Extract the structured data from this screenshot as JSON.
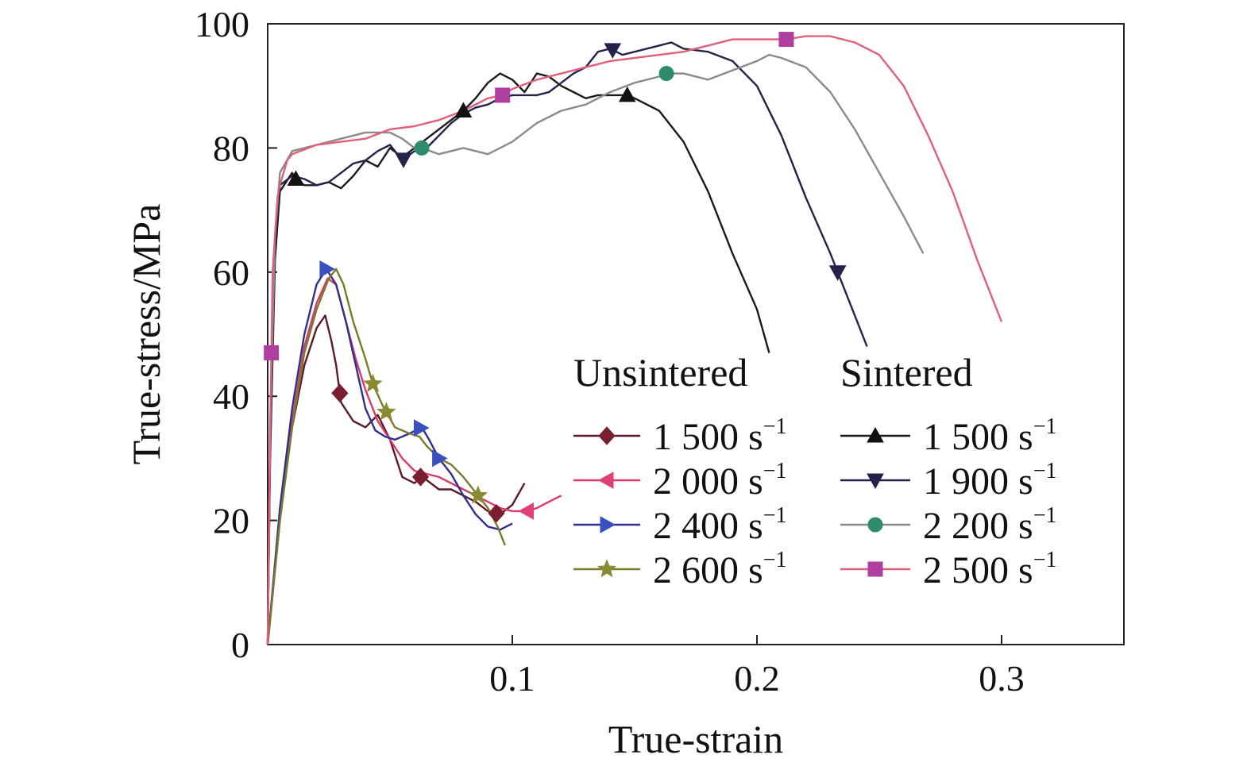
{
  "chart_data": {
    "type": "line",
    "title": "",
    "xlabel": "True-strain",
    "ylabel": "True-stress/MPa",
    "xlim": [
      0,
      0.35
    ],
    "ylim": [
      0,
      100
    ],
    "x_ticks": [
      0.1,
      0.2,
      0.3
    ],
    "x_tick_labels": [
      "0.1",
      "0.2",
      "0.3"
    ],
    "y_ticks": [
      0,
      20,
      40,
      60,
      80,
      100
    ],
    "y_tick_labels": [
      "0",
      "20",
      "40",
      "60",
      "80",
      "100"
    ],
    "grid": false,
    "legend_groups": [
      {
        "title": "Unsintered",
        "position": "center-right"
      },
      {
        "title": "Sintered",
        "position": "right"
      }
    ],
    "series": [
      {
        "group": "Unsintered",
        "name": "1 500 s",
        "exponent": "−1",
        "color": "#5a1a28",
        "marker": "diamond",
        "marker_color": "#7a1f30",
        "points": [
          [
            0,
            0
          ],
          [
            0.005,
            20
          ],
          [
            0.01,
            35
          ],
          [
            0.015,
            45
          ],
          [
            0.02,
            51
          ],
          [
            0.0235,
            53
          ],
          [
            0.026,
            49
          ],
          [
            0.028,
            45
          ],
          [
            0.03,
            39
          ],
          [
            0.035,
            36
          ],
          [
            0.04,
            35
          ],
          [
            0.045,
            37
          ],
          [
            0.05,
            33
          ],
          [
            0.055,
            27
          ],
          [
            0.06,
            26
          ],
          [
            0.0625,
            27
          ],
          [
            0.065,
            26.5
          ],
          [
            0.07,
            25
          ],
          [
            0.075,
            25
          ],
          [
            0.08,
            24
          ],
          [
            0.085,
            23
          ],
          [
            0.09,
            21.5
          ],
          [
            0.095,
            21
          ],
          [
            0.1,
            22.5
          ],
          [
            0.105,
            26
          ]
        ],
        "markers_x": [
          0.0295,
          0.0625,
          0.0935
        ]
      },
      {
        "group": "Unsintered",
        "name": "2 000 s",
        "exponent": "−1",
        "color": "#d83a6a",
        "marker": "triangle-left",
        "marker_color": "#e0407a",
        "points": [
          [
            0,
            0
          ],
          [
            0.005,
            20
          ],
          [
            0.01,
            36
          ],
          [
            0.015,
            48
          ],
          [
            0.02,
            55
          ],
          [
            0.0245,
            59
          ],
          [
            0.028,
            58
          ],
          [
            0.032,
            52
          ],
          [
            0.036,
            46
          ],
          [
            0.04,
            41
          ],
          [
            0.045,
            36
          ],
          [
            0.05,
            33
          ],
          [
            0.055,
            30
          ],
          [
            0.06,
            28
          ],
          [
            0.07,
            27
          ],
          [
            0.08,
            25
          ],
          [
            0.09,
            23
          ],
          [
            0.095,
            22
          ],
          [
            0.1,
            21.5
          ],
          [
            0.106,
            21.5
          ],
          [
            0.11,
            22
          ],
          [
            0.115,
            23
          ],
          [
            0.12,
            24
          ]
        ],
        "markers_x": [
          0.106
        ]
      },
      {
        "group": "Unsintered",
        "name": "2 400 s",
        "exponent": "−1",
        "color": "#2f2f8f",
        "marker": "triangle-right",
        "marker_color": "#3a50c0",
        "points": [
          [
            0,
            0
          ],
          [
            0.005,
            22
          ],
          [
            0.01,
            38
          ],
          [
            0.015,
            50
          ],
          [
            0.02,
            58
          ],
          [
            0.024,
            60.5
          ],
          [
            0.028,
            58
          ],
          [
            0.032,
            52
          ],
          [
            0.036,
            45
          ],
          [
            0.04,
            38
          ],
          [
            0.044,
            34.5
          ],
          [
            0.048,
            33.5
          ],
          [
            0.052,
            33
          ],
          [
            0.058,
            34
          ],
          [
            0.063,
            35
          ],
          [
            0.066,
            33
          ],
          [
            0.07,
            30
          ],
          [
            0.075,
            27.5
          ],
          [
            0.08,
            24
          ],
          [
            0.085,
            21
          ],
          [
            0.09,
            19
          ],
          [
            0.095,
            18.5
          ],
          [
            0.1,
            19.5
          ]
        ],
        "markers_x": [
          0.024,
          0.0625,
          0.07
        ]
      },
      {
        "group": "Unsintered",
        "name": "2 600 s",
        "exponent": "−1",
        "color": "#7a7a2a",
        "marker": "star",
        "marker_color": "#8a8a30",
        "points": [
          [
            0,
            0
          ],
          [
            0.005,
            20
          ],
          [
            0.01,
            35
          ],
          [
            0.015,
            47
          ],
          [
            0.02,
            54
          ],
          [
            0.025,
            59
          ],
          [
            0.028,
            60.5
          ],
          [
            0.031,
            58
          ],
          [
            0.035,
            52
          ],
          [
            0.04,
            46
          ],
          [
            0.043,
            42
          ],
          [
            0.047,
            38.5
          ],
          [
            0.052,
            35
          ],
          [
            0.058,
            34
          ],
          [
            0.062,
            33.5
          ],
          [
            0.065,
            32
          ],
          [
            0.07,
            30
          ],
          [
            0.075,
            29
          ],
          [
            0.08,
            27
          ],
          [
            0.085,
            24.5
          ],
          [
            0.09,
            22
          ],
          [
            0.094,
            19
          ],
          [
            0.097,
            16
          ]
        ],
        "markers_x": [
          0.043,
          0.0485,
          0.086
        ]
      },
      {
        "group": "Sintered",
        "name": "1 500 s",
        "exponent": "−1",
        "color": "#1a1a1a",
        "marker": "triangle-up",
        "marker_color": "#111111",
        "points": [
          [
            0,
            0
          ],
          [
            0.001,
            30
          ],
          [
            0.003,
            62
          ],
          [
            0.005,
            73
          ],
          [
            0.01,
            76
          ],
          [
            0.0115,
            75
          ],
          [
            0.015,
            74
          ],
          [
            0.02,
            74
          ],
          [
            0.025,
            74.5
          ],
          [
            0.03,
            73.5
          ],
          [
            0.035,
            75.5
          ],
          [
            0.04,
            78
          ],
          [
            0.045,
            77
          ],
          [
            0.05,
            80
          ],
          [
            0.055,
            78.5
          ],
          [
            0.06,
            80
          ],
          [
            0.065,
            81.5
          ],
          [
            0.07,
            83
          ],
          [
            0.075,
            84.5
          ],
          [
            0.08,
            86
          ],
          [
            0.085,
            88
          ],
          [
            0.09,
            90.5
          ],
          [
            0.095,
            92
          ],
          [
            0.1,
            91
          ],
          [
            0.105,
            89
          ],
          [
            0.11,
            92
          ],
          [
            0.115,
            91.5
          ],
          [
            0.12,
            90
          ],
          [
            0.125,
            89
          ],
          [
            0.13,
            88
          ],
          [
            0.135,
            88.5
          ],
          [
            0.14,
            88.5
          ],
          [
            0.147,
            88.5
          ],
          [
            0.15,
            88
          ],
          [
            0.16,
            86
          ],
          [
            0.17,
            81
          ],
          [
            0.18,
            73
          ],
          [
            0.19,
            63
          ],
          [
            0.2,
            54
          ],
          [
            0.205,
            47
          ]
        ],
        "markers_x": [
          0.0115,
          0.08,
          0.147
        ]
      },
      {
        "group": "Sintered",
        "name": "1 900 s",
        "exponent": "−1",
        "color": "#22224a",
        "marker": "triangle-down",
        "marker_color": "#22224a",
        "points": [
          [
            0,
            0
          ],
          [
            0.001,
            32
          ],
          [
            0.003,
            64
          ],
          [
            0.005,
            74
          ],
          [
            0.01,
            75.5
          ],
          [
            0.015,
            75
          ],
          [
            0.02,
            74
          ],
          [
            0.025,
            74.5
          ],
          [
            0.03,
            76
          ],
          [
            0.035,
            77.5
          ],
          [
            0.04,
            78
          ],
          [
            0.045,
            79.5
          ],
          [
            0.05,
            80.5
          ],
          [
            0.055,
            78
          ],
          [
            0.06,
            79.5
          ],
          [
            0.065,
            80
          ],
          [
            0.07,
            82
          ],
          [
            0.075,
            84
          ],
          [
            0.08,
            85.5
          ],
          [
            0.085,
            86.5
          ],
          [
            0.09,
            87
          ],
          [
            0.095,
            88
          ],
          [
            0.1,
            88.5
          ],
          [
            0.11,
            88.5
          ],
          [
            0.115,
            89
          ],
          [
            0.12,
            90.5
          ],
          [
            0.125,
            92
          ],
          [
            0.13,
            93
          ],
          [
            0.135,
            95.5
          ],
          [
            0.14,
            96
          ],
          [
            0.145,
            95
          ],
          [
            0.15,
            95.5
          ],
          [
            0.16,
            96.5
          ],
          [
            0.165,
            97
          ],
          [
            0.17,
            96
          ],
          [
            0.18,
            95.5
          ],
          [
            0.19,
            94
          ],
          [
            0.2,
            90
          ],
          [
            0.21,
            82
          ],
          [
            0.22,
            72
          ],
          [
            0.23,
            63
          ],
          [
            0.235,
            58
          ],
          [
            0.245,
            48
          ]
        ],
        "markers_x": [
          0.0555,
          0.141,
          0.233
        ]
      },
      {
        "group": "Sintered",
        "name": "2 200 s",
        "exponent": "−1",
        "color": "#8a8a8a",
        "marker": "circle",
        "marker_color": "#2e8b6e",
        "points": [
          [
            0,
            0
          ],
          [
            0.001,
            35
          ],
          [
            0.003,
            66
          ],
          [
            0.005,
            76
          ],
          [
            0.01,
            79.5
          ],
          [
            0.015,
            80
          ],
          [
            0.02,
            80.5
          ],
          [
            0.03,
            81.5
          ],
          [
            0.04,
            82.5
          ],
          [
            0.05,
            82.5
          ],
          [
            0.055,
            81.5
          ],
          [
            0.06,
            80
          ],
          [
            0.063,
            80
          ],
          [
            0.07,
            79
          ],
          [
            0.08,
            80
          ],
          [
            0.09,
            79
          ],
          [
            0.1,
            81
          ],
          [
            0.11,
            84
          ],
          [
            0.12,
            86
          ],
          [
            0.13,
            87
          ],
          [
            0.14,
            89
          ],
          [
            0.15,
            90.5
          ],
          [
            0.16,
            91.5
          ],
          [
            0.163,
            92
          ],
          [
            0.17,
            92
          ],
          [
            0.18,
            91
          ],
          [
            0.19,
            92.5
          ],
          [
            0.2,
            94
          ],
          [
            0.205,
            95
          ],
          [
            0.21,
            94.5
          ],
          [
            0.22,
            93
          ],
          [
            0.23,
            89
          ],
          [
            0.24,
            83
          ],
          [
            0.25,
            76
          ],
          [
            0.26,
            69
          ],
          [
            0.268,
            63
          ]
        ],
        "markers_x": [
          0.063,
          0.163
        ]
      },
      {
        "group": "Sintered",
        "name": "2 500 s",
        "exponent": "−1",
        "color": "#e0607a",
        "marker": "square",
        "marker_color": "#b040a0",
        "points": [
          [
            0,
            0
          ],
          [
            0.001,
            34
          ],
          [
            0.002,
            60
          ],
          [
            0.004,
            72
          ],
          [
            0.005,
            74
          ],
          [
            0.008,
            78
          ],
          [
            0.01,
            79
          ],
          [
            0.02,
            80.5
          ],
          [
            0.03,
            81
          ],
          [
            0.04,
            81.5
          ],
          [
            0.05,
            83
          ],
          [
            0.06,
            83.5
          ],
          [
            0.07,
            84.5
          ],
          [
            0.08,
            86
          ],
          [
            0.09,
            88
          ],
          [
            0.096,
            88.5
          ],
          [
            0.1,
            89.5
          ],
          [
            0.11,
            91
          ],
          [
            0.12,
            92
          ],
          [
            0.13,
            93
          ],
          [
            0.14,
            94
          ],
          [
            0.15,
            94.5
          ],
          [
            0.16,
            95
          ],
          [
            0.17,
            95.5
          ],
          [
            0.18,
            96.5
          ],
          [
            0.19,
            97.5
          ],
          [
            0.2,
            97.5
          ],
          [
            0.21,
            97.5
          ],
          [
            0.212,
            97.5
          ],
          [
            0.22,
            98
          ],
          [
            0.23,
            98
          ],
          [
            0.24,
            97
          ],
          [
            0.25,
            95
          ],
          [
            0.26,
            90
          ],
          [
            0.27,
            82
          ],
          [
            0.28,
            73
          ],
          [
            0.29,
            62
          ],
          [
            0.3,
            52
          ]
        ],
        "markers_x": [
          0.0015,
          0.096,
          0.212
        ]
      }
    ]
  }
}
